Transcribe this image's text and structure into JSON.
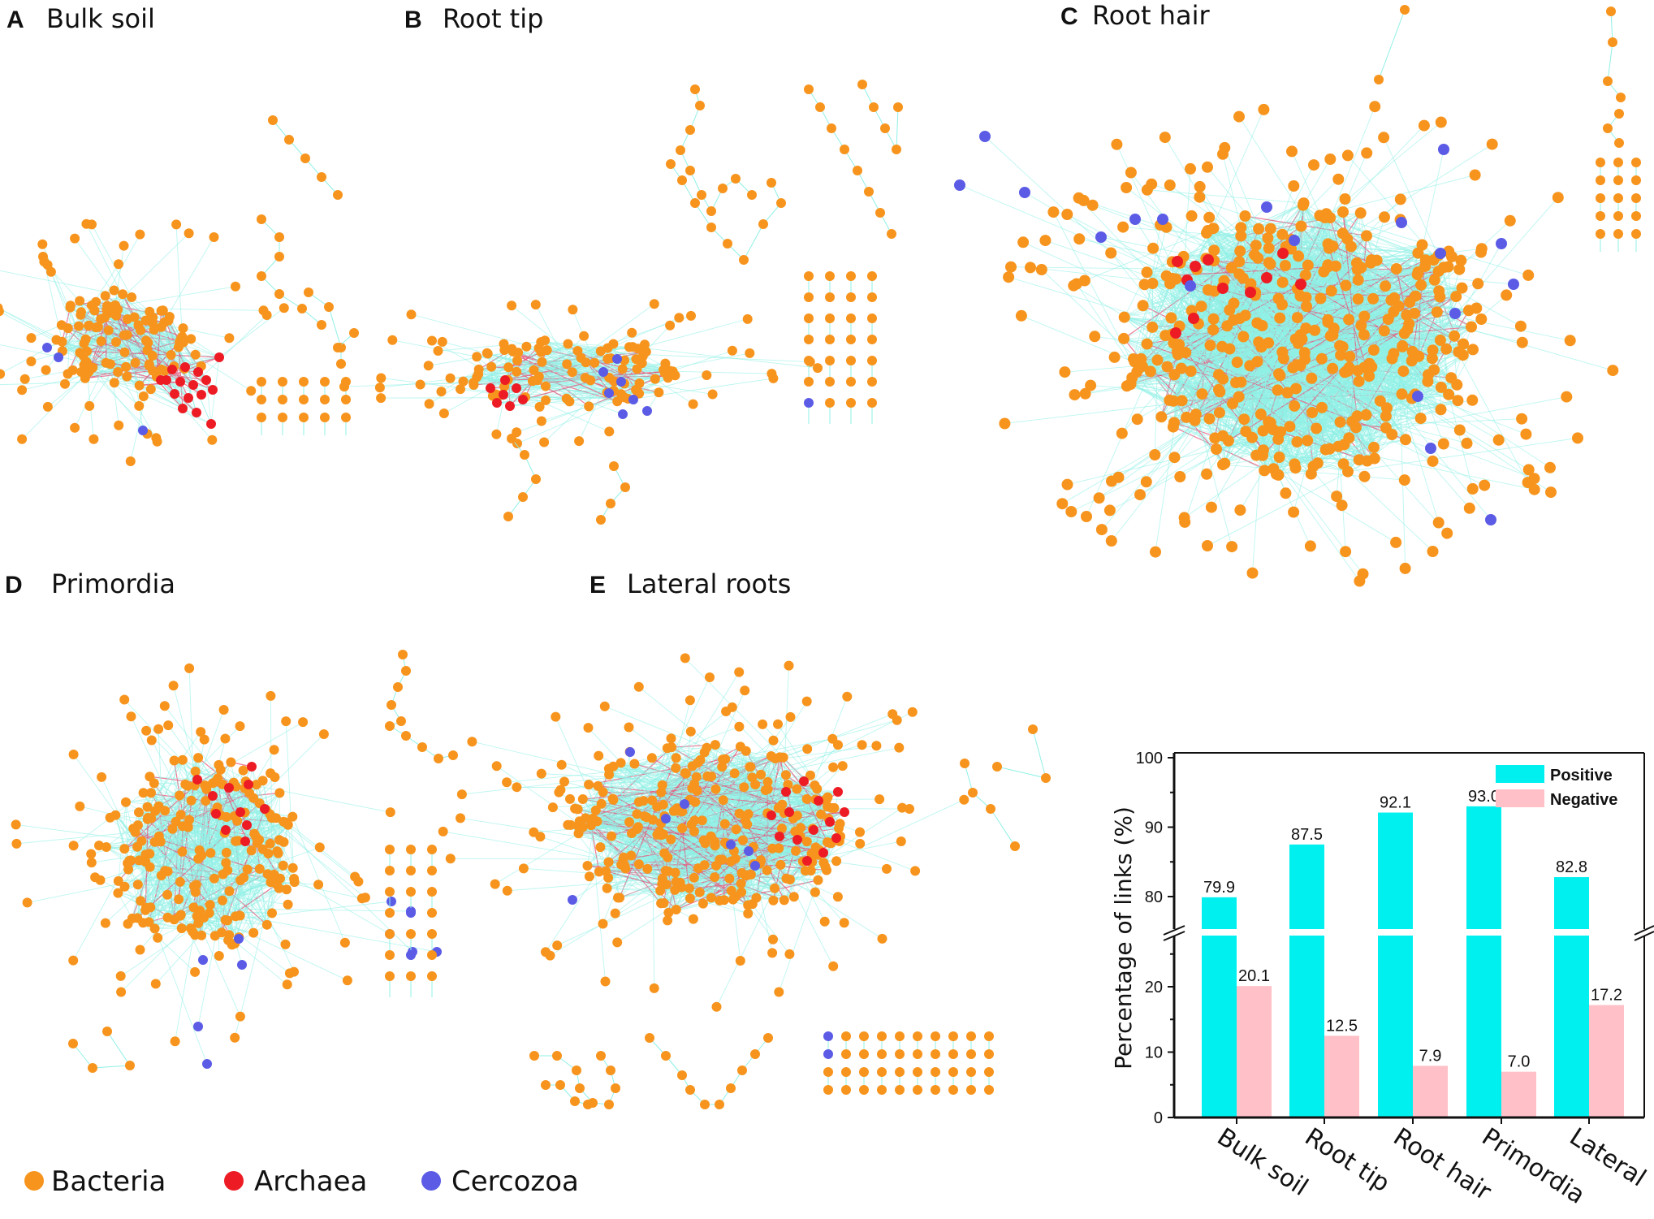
{
  "figure": {
    "panels": [
      {
        "letter": "A",
        "name": "Bulk soil"
      },
      {
        "letter": "B",
        "name": "Root tip"
      },
      {
        "letter": "C",
        "name": "Root hair"
      },
      {
        "letter": "D",
        "name": "Primordia"
      },
      {
        "letter": "E",
        "name": "Lateral roots"
      }
    ],
    "legend": [
      {
        "label": "Bacteria",
        "color": "#F7941D"
      },
      {
        "label": "Archaea",
        "color": "#ED1C24"
      },
      {
        "label": "Cercozoa",
        "color": "#5B5BE6"
      }
    ],
    "edge_colors": {
      "positive": "#8FF0E6",
      "negative": "#E8577C"
    }
  },
  "chart_data": {
    "type": "bar",
    "categories": [
      "Bulk soil",
      "Root tip",
      "Root hair",
      "Primordia",
      "Lateral"
    ],
    "series": [
      {
        "name": "Positive",
        "color": "#00F0F0",
        "values": [
          79.9,
          87.5,
          92.1,
          93.0,
          82.8
        ],
        "labels": [
          "79.9",
          "87.5",
          "92.1",
          "93.0",
          "82.8"
        ]
      },
      {
        "name": "Negative",
        "color": "#FFC0C8",
        "values": [
          20.1,
          12.5,
          7.9,
          7.0,
          17.2
        ],
        "labels": [
          "20.1",
          "12.5",
          "7.9",
          "7.0",
          "17.2"
        ]
      }
    ],
    "ylabel": "Percentage of links (%)",
    "y_break": {
      "lower": [
        0,
        27
      ],
      "upper": [
        76,
        100
      ]
    },
    "y_ticks": [
      {
        "value": 0,
        "label": "0"
      },
      {
        "value": 10,
        "label": "10"
      },
      {
        "value": 20,
        "label": "20"
      },
      {
        "value": 80,
        "label": "80"
      },
      {
        "value": 90,
        "label": "90"
      },
      {
        "value": 100,
        "label": "100"
      }
    ],
    "legend_position": "top-right"
  }
}
